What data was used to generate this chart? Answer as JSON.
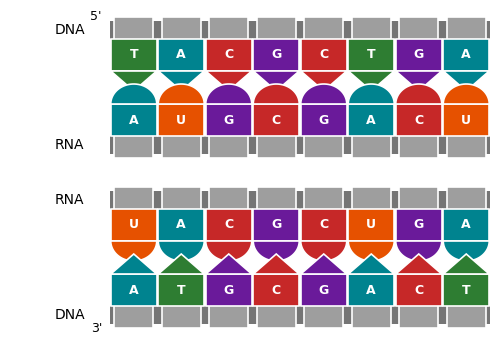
{
  "top_diagram": {
    "dna_strand": [
      "T",
      "A",
      "C",
      "G",
      "C",
      "T",
      "G",
      "A"
    ],
    "rna_strand": [
      "A",
      "U",
      "G",
      "C",
      "G",
      "A",
      "C",
      "U"
    ],
    "dna_colors": [
      "#2e7d32",
      "#00838f",
      "#c62828",
      "#6a1a9a",
      "#c62828",
      "#2e7d32",
      "#6a1a9a",
      "#00838f"
    ],
    "rna_colors": [
      "#00838f",
      "#e65100",
      "#6a1a9a",
      "#c62828",
      "#6a1a9a",
      "#00838f",
      "#c62828",
      "#e65100"
    ],
    "label_dna": "DNA",
    "label_rna": "RNA",
    "label_5p": "5'",
    "label_3p": "3'"
  },
  "bottom_diagram": {
    "rna_strand": [
      "U",
      "A",
      "C",
      "G",
      "C",
      "U",
      "G",
      "A"
    ],
    "dna_strand": [
      "A",
      "T",
      "G",
      "C",
      "G",
      "A",
      "C",
      "T"
    ],
    "rna_colors": [
      "#e65100",
      "#00838f",
      "#c62828",
      "#6a1a9a",
      "#c62828",
      "#e65100",
      "#6a1a9a",
      "#00838f"
    ],
    "dna_colors": [
      "#00838f",
      "#2e7d32",
      "#6a1a9a",
      "#c62828",
      "#6a1a9a",
      "#00838f",
      "#c62828",
      "#2e7d32"
    ],
    "label_rna": "RNA",
    "label_dna": "DNA",
    "label_3p": "3'",
    "label_5p": "5'"
  },
  "backbone_color": "#757575",
  "backbone_block_color": "#9e9e9e",
  "text_color": "#ffffff",
  "label_color": "#000000",
  "fig_width": 4.99,
  "fig_height": 3.45,
  "dpi": 100
}
